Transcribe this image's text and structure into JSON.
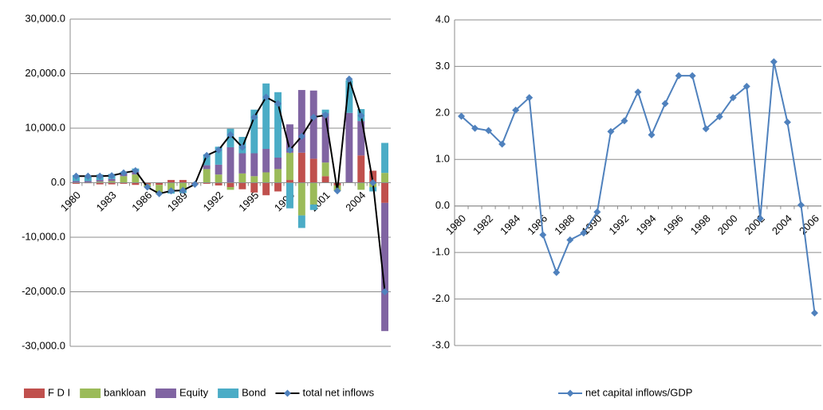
{
  "chart_data": [
    {
      "type": "bar",
      "stacked": true,
      "grid": true,
      "categories": [
        "1980",
        null,
        null,
        "1983",
        null,
        null,
        "1986",
        null,
        null,
        "1989",
        null,
        null,
        "1992",
        null,
        null,
        "1995",
        null,
        null,
        "1998",
        null,
        null,
        "2001",
        null,
        null,
        "2004",
        null,
        null
      ],
      "ylim": [
        -30000,
        30000
      ],
      "yticks": [
        {
          "value": -30000,
          "label": "-30,000.0"
        },
        {
          "value": -20000,
          "label": "-20,000.0"
        },
        {
          "value": -10000,
          "label": "-10,000.0"
        },
        {
          "value": 0,
          "label": "0.0"
        },
        {
          "value": 10000,
          "label": "10,000.0"
        },
        {
          "value": 20000,
          "label": "20,000.0"
        },
        {
          "value": 30000,
          "label": "30,000.0"
        }
      ],
      "series": [
        {
          "name": "F D I",
          "color": "#c0504d",
          "values": [
            -200,
            -100,
            -300,
            -300,
            -200,
            -400,
            -300,
            -400,
            500,
            500,
            -300,
            -200,
            -500,
            -800,
            -1200,
            -1800,
            -2300,
            -1600,
            500,
            5500,
            4400,
            1200,
            -500,
            0,
            5000,
            2200,
            -3700
          ]
        },
        {
          "name": "bankloan",
          "color": "#9bbb59",
          "values": [
            0,
            0,
            200,
            300,
            1200,
            1500,
            -500,
            -1700,
            -1500,
            -1400,
            0,
            2500,
            1500,
            -500,
            1700,
            1200,
            1900,
            2500,
            5000,
            -6000,
            -4000,
            2500,
            -1000,
            0,
            -1300,
            -800,
            1800
          ]
        },
        {
          "name": "Equity",
          "color": "#8064a2",
          "values": [
            300,
            300,
            300,
            400,
            500,
            500,
            0,
            0,
            0,
            0,
            0,
            700,
            1800,
            6500,
            3700,
            4200,
            4300,
            2100,
            5200,
            11500,
            12500,
            9000,
            0,
            12800,
            6300,
            0,
            -23500
          ]
        },
        {
          "name": "Bond",
          "color": "#4bacc6",
          "values": [
            1100,
            1000,
            1000,
            900,
            300,
            600,
            0,
            0,
            -500,
            -500,
            0,
            2000,
            3300,
            3400,
            3000,
            8000,
            12000,
            12000,
            -4700,
            -2300,
            -1000,
            700,
            0,
            6000,
            2200,
            -800,
            5500
          ]
        },
        {
          "name": "total net inflows",
          "type": "line",
          "color": "#000000",
          "marker_color": "#4f81bd",
          "values": [
            1200,
            1200,
            1200,
            1300,
            1800,
            2200,
            -800,
            -2000,
            -1500,
            -1400,
            -300,
            5000,
            6000,
            8800,
            6500,
            12000,
            15700,
            14500,
            6000,
            8500,
            12000,
            12400,
            -1500,
            19000,
            12300,
            0,
            -20000
          ]
        }
      ]
    },
    {
      "type": "line",
      "grid": true,
      "categories": [
        "1980",
        null,
        "1982",
        null,
        "1984",
        null,
        "1986",
        null,
        "1988",
        null,
        "1990",
        null,
        "1992",
        null,
        "1994",
        null,
        "1996",
        null,
        "1998",
        null,
        "2000",
        null,
        "2002",
        null,
        "2004",
        null,
        "2006"
      ],
      "ylim": [
        -3,
        4
      ],
      "yticks": [
        {
          "value": -3,
          "label": "-3.0"
        },
        {
          "value": -2,
          "label": "-2.0"
        },
        {
          "value": -1,
          "label": "-1.0"
        },
        {
          "value": 0,
          "label": "0.0"
        },
        {
          "value": 1,
          "label": "1.0"
        },
        {
          "value": 2,
          "label": "2.0"
        },
        {
          "value": 3,
          "label": "3.0"
        },
        {
          "value": 4,
          "label": "4.0"
        }
      ],
      "series": [
        {
          "name": "net capital inflows/GDP",
          "color": "#4f81bd",
          "values": [
            1.93,
            1.67,
            1.62,
            1.33,
            2.06,
            2.33,
            -0.62,
            -1.43,
            -0.73,
            -0.58,
            -0.13,
            1.6,
            1.83,
            2.45,
            1.53,
            2.2,
            2.8,
            2.8,
            1.66,
            1.92,
            2.33,
            2.57,
            -0.27,
            3.1,
            1.8,
            0.02,
            -2.3
          ]
        }
      ]
    }
  ]
}
